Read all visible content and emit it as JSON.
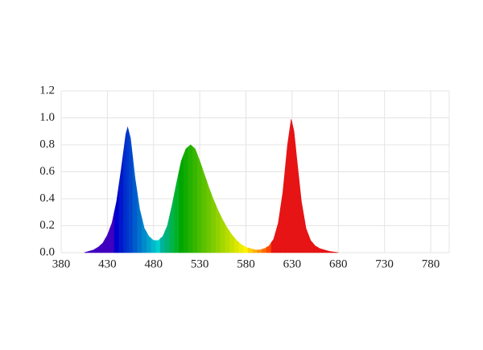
{
  "chart_data": {
    "type": "spectrum",
    "x": [
      405,
      410,
      415,
      420,
      425,
      430,
      435,
      440,
      445,
      450,
      452,
      455,
      460,
      465,
      470,
      475,
      480,
      485,
      490,
      495,
      500,
      505,
      510,
      515,
      520,
      525,
      530,
      535,
      540,
      545,
      550,
      555,
      560,
      565,
      570,
      575,
      580,
      585,
      590,
      595,
      600,
      605,
      610,
      615,
      620,
      625,
      629,
      632,
      635,
      640,
      645,
      650,
      655,
      660,
      665,
      670,
      675,
      680
    ],
    "values": [
      0,
      0.01,
      0.02,
      0.04,
      0.07,
      0.13,
      0.22,
      0.38,
      0.62,
      0.88,
      0.93,
      0.85,
      0.55,
      0.32,
      0.18,
      0.12,
      0.09,
      0.09,
      0.12,
      0.2,
      0.35,
      0.52,
      0.68,
      0.77,
      0.8,
      0.77,
      0.68,
      0.58,
      0.48,
      0.39,
      0.31,
      0.24,
      0.18,
      0.13,
      0.09,
      0.06,
      0.04,
      0.03,
      0.02,
      0.02,
      0.03,
      0.05,
      0.1,
      0.22,
      0.45,
      0.8,
      0.99,
      0.9,
      0.7,
      0.38,
      0.18,
      0.09,
      0.05,
      0.03,
      0.02,
      0.01,
      0.005,
      0
    ],
    "xlim": [
      380,
      800
    ],
    "xticks": [
      380,
      430,
      480,
      530,
      580,
      630,
      680,
      730,
      780
    ],
    "ylim": [
      0,
      1.2
    ],
    "yticks": [
      {
        "value": 0,
        "label": "0.0"
      },
      0.2,
      0.4,
      0.6,
      0.8,
      {
        "value": 1,
        "label": "1.0"
      },
      1.2
    ],
    "grid": true
  }
}
